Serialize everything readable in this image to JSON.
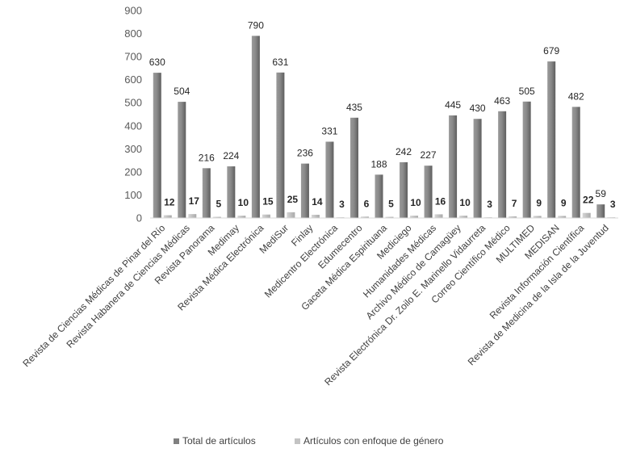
{
  "chart_data": {
    "type": "bar",
    "title": "",
    "xlabel": "",
    "ylabel": "",
    "ylim": [
      0,
      900
    ],
    "yticks": [
      0,
      100,
      200,
      300,
      400,
      500,
      600,
      700,
      800,
      900
    ],
    "grid": false,
    "legend_position": "bottom",
    "categories": [
      "Revista de Ciencias Médicas de Pinar del Río",
      "Revista Habanera de Ciencias Médicas",
      "Revista Panorama",
      "Medimay",
      "Revista Médica Electrónica",
      "MediSur",
      "Finlay",
      "Medicentro Electrónica",
      "Edumecentro",
      "Gaceta Médica Espirituana",
      "Mediciego",
      "Humanidades Médicas",
      "Archivo Médico de Camagüey",
      "Revista Electrónica Dr. Zoilo E. Marinello Vidaurreta",
      "Correo Científico Médico",
      "MULTIMED",
      "MEDISAN",
      "Revista Información Científica",
      "Revista de Medicina de la Isla de la Juventud"
    ],
    "series": [
      {
        "name": "Total de artículos",
        "color": "#808080",
        "values": [
          630,
          504,
          216,
          224,
          790,
          631,
          236,
          331,
          435,
          188,
          242,
          227,
          445,
          430,
          463,
          505,
          679,
          482,
          59
        ]
      },
      {
        "name": "Artículos con enfoque de género",
        "color": "#c3c3c3",
        "values": [
          12,
          17,
          5,
          10,
          15,
          25,
          14,
          3,
          6,
          5,
          10,
          16,
          10,
          3,
          7,
          9,
          9,
          22,
          3
        ]
      }
    ]
  }
}
